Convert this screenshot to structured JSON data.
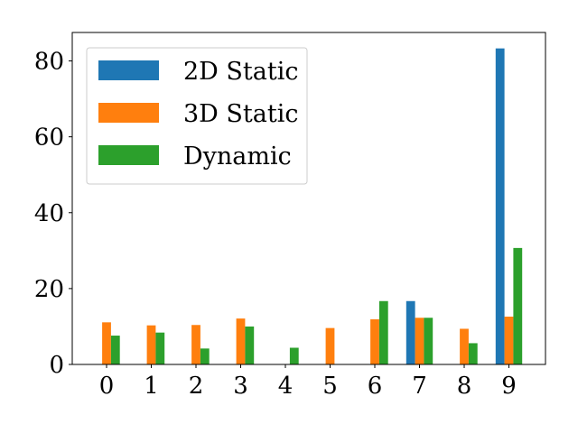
{
  "chart_data": {
    "type": "bar",
    "categories": [
      "0",
      "1",
      "2",
      "3",
      "4",
      "5",
      "6",
      "7",
      "8",
      "9"
    ],
    "series": [
      {
        "name": "2D Static",
        "color": "#1f77b4",
        "values": [
          0,
          0,
          0,
          0,
          0,
          0,
          0,
          16.7,
          0,
          83.3
        ]
      },
      {
        "name": "3D Static",
        "color": "#ff7f0e",
        "values": [
          11.1,
          10.3,
          10.4,
          12.1,
          0,
          9.6,
          11.9,
          12.3,
          9.4,
          12.6
        ]
      },
      {
        "name": "Dynamic",
        "color": "#2ca02c",
        "values": [
          7.6,
          8.4,
          4.2,
          10.0,
          4.4,
          0,
          16.7,
          12.3,
          5.6,
          30.7
        ]
      }
    ],
    "yticks": [
      "0",
      "20",
      "40",
      "60",
      "80"
    ],
    "ylim": [
      0,
      87.5
    ],
    "legend_position": "top-left",
    "title": "",
    "xlabel": "",
    "ylabel": ""
  }
}
